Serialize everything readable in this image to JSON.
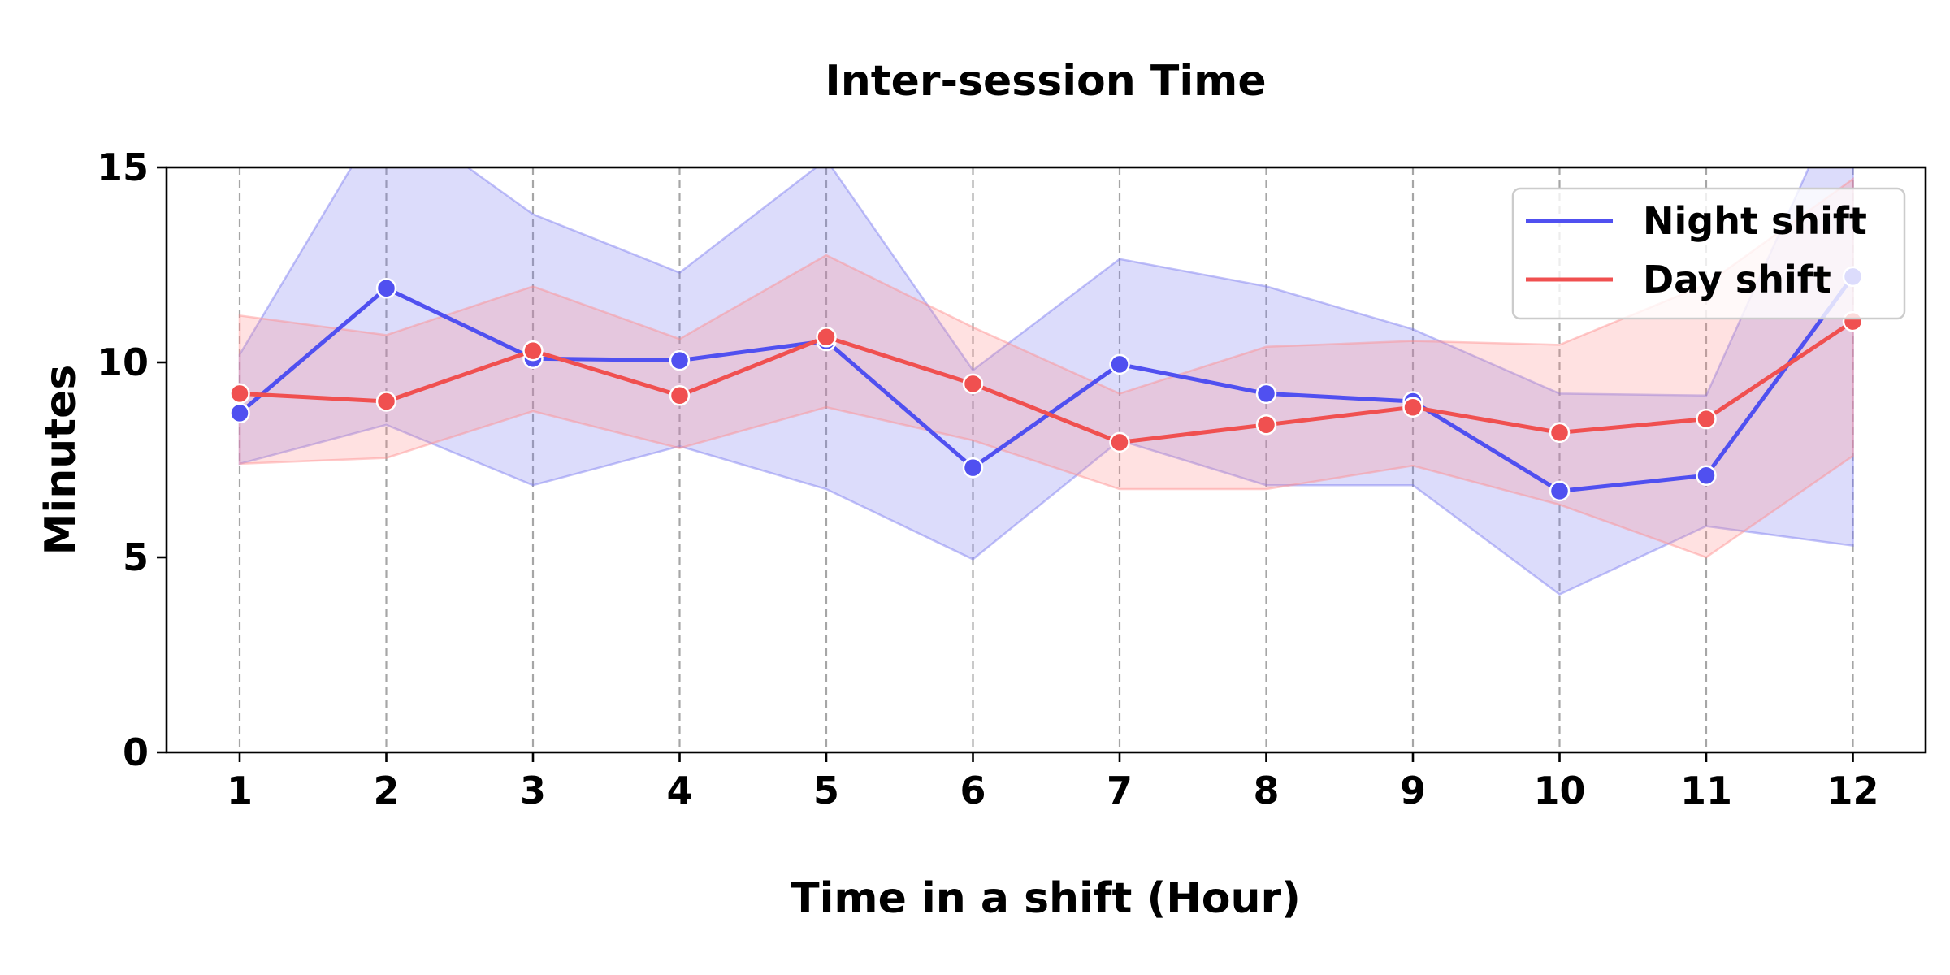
{
  "chart_data": {
    "type": "line",
    "title": "Inter-session Time",
    "xlabel": "Time in a shift (Hour)",
    "ylabel": "Minutes",
    "x": [
      1,
      2,
      3,
      4,
      5,
      6,
      7,
      8,
      9,
      10,
      11,
      12
    ],
    "ylim": [
      0,
      15
    ],
    "yticks": [
      0,
      5,
      10,
      15
    ],
    "grid": "vertical dashed",
    "legend_position": "top-right",
    "series": [
      {
        "name": "Night shift",
        "color": "#5050f0",
        "band_color": "#7878f0",
        "values": [
          8.7,
          11.9,
          10.1,
          10.05,
          10.55,
          7.3,
          9.95,
          9.2,
          9.0,
          6.7,
          7.1,
          12.2
        ],
        "lower": [
          7.4,
          8.4,
          6.85,
          7.85,
          6.75,
          4.95,
          8.0,
          6.85,
          6.85,
          4.05,
          5.8,
          5.3
        ],
        "upper": [
          10.2,
          16.5,
          13.8,
          12.3,
          15.2,
          9.8,
          12.65,
          11.95,
          10.85,
          9.2,
          9.15,
          17.5
        ]
      },
      {
        "name": "Day shift",
        "color": "#f05050",
        "band_color": "#ff8c8c",
        "values": [
          9.2,
          9.0,
          10.3,
          9.15,
          10.65,
          9.45,
          7.95,
          8.4,
          8.85,
          8.2,
          8.55,
          11.05
        ],
        "lower": [
          7.4,
          7.55,
          8.75,
          7.8,
          8.85,
          8.0,
          6.75,
          6.75,
          7.35,
          6.35,
          5.0,
          7.6
        ],
        "upper": [
          11.2,
          10.7,
          11.95,
          10.6,
          12.75,
          10.9,
          9.2,
          10.4,
          10.55,
          10.45,
          12.0,
          14.7
        ]
      }
    ]
  }
}
